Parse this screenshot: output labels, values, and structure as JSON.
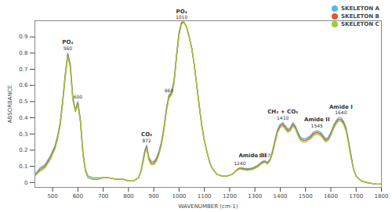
{
  "chart_data": {
    "type": "line",
    "x_label": "WAVENUMBER (cm-1)",
    "y_label": "ABSORBANCE",
    "xlim": [
      430,
      1800
    ],
    "xticks": [
      500,
      600,
      700,
      800,
      900,
      1000,
      1100,
      1200,
      1300,
      1400,
      1500,
      1600,
      1700,
      1800
    ],
    "ylim": [
      -0.03,
      1.0
    ],
    "yticks": [
      0,
      0.1,
      0.2,
      0.3,
      0.4,
      0.5,
      0.6,
      0.7,
      0.8,
      0.9
    ],
    "legend": "top-right",
    "x": [
      430,
      450,
      470,
      490,
      510,
      520,
      530,
      540,
      550,
      560,
      570,
      580,
      590,
      600,
      610,
      620,
      630,
      640,
      660,
      680,
      700,
      720,
      750,
      780,
      800,
      820,
      840,
      850,
      860,
      865,
      872,
      880,
      890,
      900,
      910,
      920,
      930,
      940,
      950,
      960,
      970,
      980,
      990,
      1000,
      1010,
      1020,
      1030,
      1040,
      1050,
      1060,
      1070,
      1080,
      1090,
      1100,
      1110,
      1120,
      1130,
      1150,
      1170,
      1190,
      1210,
      1230,
      1240,
      1250,
      1270,
      1290,
      1310,
      1325,
      1337,
      1350,
      1360,
      1370,
      1380,
      1390,
      1400,
      1410,
      1420,
      1430,
      1440,
      1450,
      1460,
      1470,
      1480,
      1490,
      1500,
      1510,
      1520,
      1530,
      1545,
      1560,
      1570,
      1580,
      1590,
      1600,
      1610,
      1620,
      1630,
      1640,
      1650,
      1660,
      1670,
      1680,
      1690,
      1700,
      1720,
      1740,
      1760,
      1780,
      1800
    ],
    "series": [
      {
        "name": "SKELETON A",
        "color": "#5cb6e4",
        "values": [
          0.05,
          0.09,
          0.11,
          0.16,
          0.23,
          0.29,
          0.37,
          0.51,
          0.67,
          0.8,
          0.73,
          0.53,
          0.45,
          0.5,
          0.39,
          0.19,
          0.08,
          0.04,
          0.03,
          0.03,
          0.03,
          0.03,
          0.02,
          0.02,
          0.01,
          0.01,
          0.03,
          0.08,
          0.16,
          0.2,
          0.23,
          0.16,
          0.13,
          0.13,
          0.15,
          0.19,
          0.25,
          0.34,
          0.46,
          0.54,
          0.56,
          0.63,
          0.79,
          0.93,
          0.99,
          0.99,
          0.96,
          0.9,
          0.83,
          0.73,
          0.6,
          0.47,
          0.35,
          0.26,
          0.19,
          0.13,
          0.09,
          0.05,
          0.04,
          0.04,
          0.05,
          0.08,
          0.09,
          0.09,
          0.085,
          0.09,
          0.105,
          0.125,
          0.135,
          0.125,
          0.145,
          0.2,
          0.27,
          0.33,
          0.36,
          0.37,
          0.35,
          0.33,
          0.34,
          0.37,
          0.35,
          0.31,
          0.28,
          0.27,
          0.27,
          0.28,
          0.29,
          0.31,
          0.32,
          0.31,
          0.29,
          0.27,
          0.28,
          0.31,
          0.35,
          0.38,
          0.4,
          0.4,
          0.38,
          0.34,
          0.26,
          0.17,
          0.08,
          0.04,
          0.01,
          0.0,
          -0.005,
          -0.01,
          -0.01
        ]
      },
      {
        "name": "SKELETON B",
        "color": "#e0553a",
        "values": [
          0.04,
          0.08,
          0.1,
          0.15,
          0.22,
          0.28,
          0.36,
          0.5,
          0.66,
          0.79,
          0.72,
          0.52,
          0.44,
          0.49,
          0.38,
          0.18,
          0.07,
          0.03,
          0.02,
          0.02,
          0.03,
          0.03,
          0.02,
          0.02,
          0.01,
          0.01,
          0.03,
          0.07,
          0.15,
          0.19,
          0.22,
          0.15,
          0.12,
          0.12,
          0.14,
          0.18,
          0.24,
          0.33,
          0.45,
          0.53,
          0.55,
          0.62,
          0.78,
          0.92,
          0.99,
          0.99,
          0.96,
          0.9,
          0.83,
          0.73,
          0.6,
          0.47,
          0.35,
          0.26,
          0.19,
          0.13,
          0.09,
          0.05,
          0.04,
          0.04,
          0.05,
          0.08,
          0.09,
          0.085,
          0.08,
          0.085,
          0.1,
          0.12,
          0.13,
          0.12,
          0.14,
          0.19,
          0.26,
          0.32,
          0.35,
          0.36,
          0.34,
          0.32,
          0.33,
          0.36,
          0.34,
          0.3,
          0.27,
          0.26,
          0.26,
          0.27,
          0.28,
          0.3,
          0.31,
          0.3,
          0.28,
          0.26,
          0.27,
          0.3,
          0.34,
          0.37,
          0.39,
          0.39,
          0.37,
          0.33,
          0.25,
          0.16,
          0.08,
          0.04,
          0.01,
          0.0,
          -0.005,
          -0.01,
          -0.01
        ]
      },
      {
        "name": "SKELETON C",
        "color": "#9acb3c",
        "values": [
          0.04,
          0.07,
          0.09,
          0.14,
          0.21,
          0.27,
          0.35,
          0.49,
          0.65,
          0.78,
          0.71,
          0.51,
          0.44,
          0.48,
          0.37,
          0.17,
          0.07,
          0.03,
          0.02,
          0.02,
          0.03,
          0.03,
          0.02,
          0.02,
          0.01,
          0.01,
          0.03,
          0.07,
          0.14,
          0.18,
          0.21,
          0.14,
          0.11,
          0.11,
          0.13,
          0.17,
          0.23,
          0.32,
          0.44,
          0.52,
          0.54,
          0.61,
          0.77,
          0.91,
          0.98,
          0.99,
          0.96,
          0.9,
          0.83,
          0.73,
          0.6,
          0.47,
          0.35,
          0.26,
          0.19,
          0.13,
          0.09,
          0.05,
          0.04,
          0.04,
          0.05,
          0.075,
          0.085,
          0.08,
          0.075,
          0.08,
          0.095,
          0.115,
          0.125,
          0.115,
          0.135,
          0.18,
          0.25,
          0.31,
          0.34,
          0.35,
          0.33,
          0.31,
          0.32,
          0.35,
          0.33,
          0.29,
          0.26,
          0.25,
          0.25,
          0.26,
          0.27,
          0.29,
          0.3,
          0.29,
          0.27,
          0.25,
          0.26,
          0.29,
          0.33,
          0.36,
          0.38,
          0.38,
          0.36,
          0.32,
          0.24,
          0.15,
          0.08,
          0.04,
          0.01,
          0.0,
          -0.005,
          -0.01,
          -0.01
        ]
      }
    ],
    "annotations": [
      {
        "x": 560,
        "label": "560",
        "name": "PO₄"
      },
      {
        "x": 600,
        "label": "600"
      },
      {
        "x": 872,
        "label": "872",
        "name": "CO₃"
      },
      {
        "x": 960,
        "label": "960"
      },
      {
        "x": 1010,
        "label": "1010",
        "name": "PO₄"
      },
      {
        "x": 1240,
        "label": "1240"
      },
      {
        "x": 1290,
        "name": "Amide III"
      },
      {
        "x": 1337,
        "label": "1337"
      },
      {
        "x": 1410,
        "label": "1410",
        "name": "CH₂ + CO₃"
      },
      {
        "x": 1545,
        "label": "1545",
        "name": "Amide II"
      },
      {
        "x": 1640,
        "label": "1640",
        "name": "Amide I"
      }
    ]
  }
}
